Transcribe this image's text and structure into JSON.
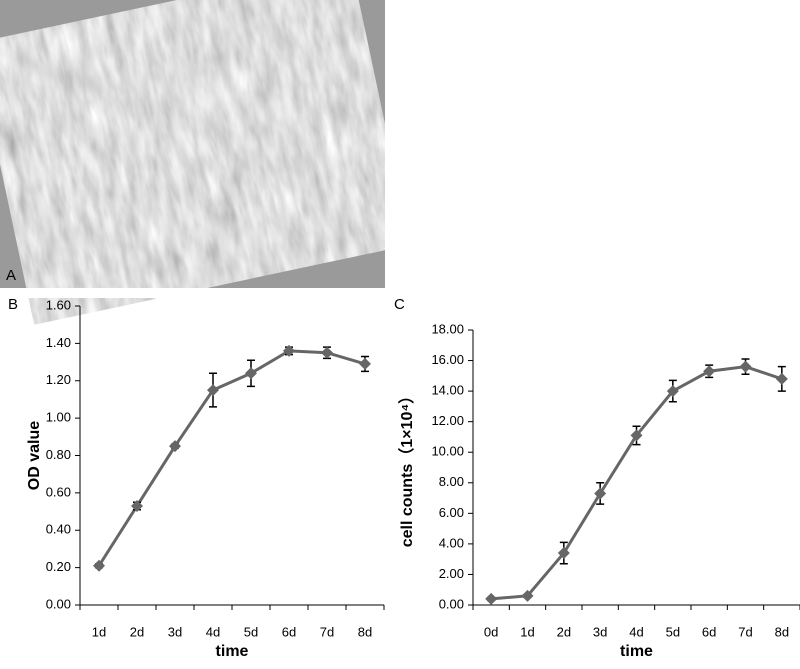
{
  "image_panel": {
    "label": "A"
  },
  "chart_data": [
    {
      "type": "line",
      "panel_label": "B",
      "xlabel": "time",
      "ylabel": "OD  value",
      "categories": [
        "1d",
        "2d",
        "3d",
        "4d",
        "5d",
        "6d",
        "7d",
        "8d"
      ],
      "values": [
        0.21,
        0.53,
        0.85,
        1.15,
        1.24,
        1.36,
        1.35,
        1.29
      ],
      "errors": [
        0.01,
        0.02,
        0.01,
        0.09,
        0.07,
        0.02,
        0.03,
        0.04
      ],
      "color": "#666666",
      "ylim": [
        0,
        1.6
      ],
      "yticks": [
        {
          "value": 0,
          "label": "0.00"
        },
        {
          "value": 0.2,
          "label": "0.20"
        },
        {
          "value": 0.4,
          "label": "0.40"
        },
        {
          "value": 0.6,
          "label": "0.60"
        },
        {
          "value": 0.8,
          "label": "0.80"
        },
        {
          "value": 1.0,
          "label": "1.00"
        },
        {
          "value": 1.2,
          "label": "1.20"
        },
        {
          "value": 1.4,
          "label": "1.40"
        },
        {
          "value": 1.6,
          "label": "1.60"
        }
      ]
    },
    {
      "type": "line",
      "panel_label": "C",
      "xlabel": "time",
      "ylabel": "cell counts（1×10⁴）",
      "categories": [
        "0d",
        "1d",
        "2d",
        "3d",
        "4d",
        "5d",
        "6d",
        "7d",
        "8d"
      ],
      "values": [
        0.4,
        0.6,
        3.4,
        7.3,
        11.1,
        14.0,
        15.3,
        15.6,
        14.8
      ],
      "errors": [
        0.1,
        0.1,
        0.7,
        0.7,
        0.6,
        0.7,
        0.4,
        0.5,
        0.8
      ],
      "color": "#666666",
      "ylim": [
        0,
        18
      ],
      "yticks": [
        {
          "value": 0,
          "label": "0.00"
        },
        {
          "value": 2,
          "label": "2.00"
        },
        {
          "value": 4,
          "label": "4.00"
        },
        {
          "value": 6,
          "label": "6.00"
        },
        {
          "value": 8,
          "label": "8.00"
        },
        {
          "value": 10,
          "label": "10.00"
        },
        {
          "value": 12,
          "label": "12.00"
        },
        {
          "value": 14,
          "label": "14.00"
        },
        {
          "value": 16,
          "label": "16.00"
        },
        {
          "value": 18,
          "label": "18.00"
        }
      ]
    }
  ]
}
